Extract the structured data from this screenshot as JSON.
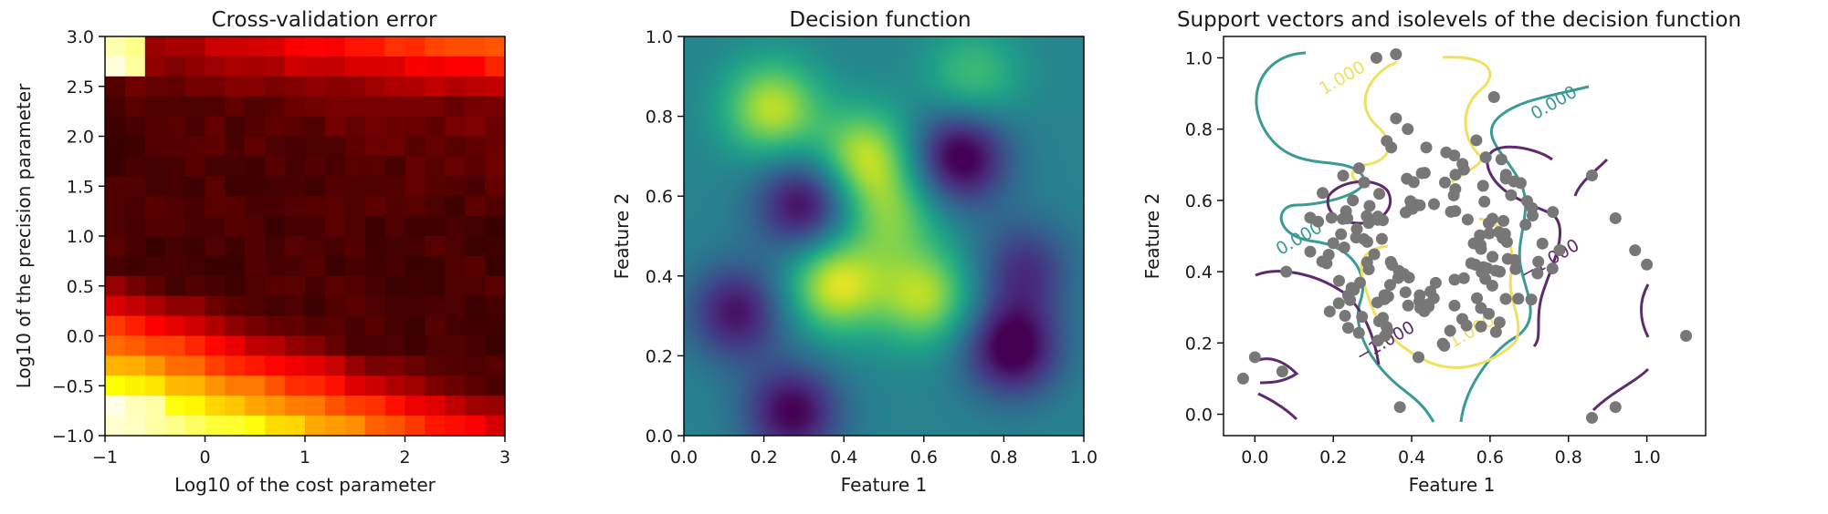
{
  "chart_data": [
    {
      "type": "heatmap",
      "title": "Cross-validation error",
      "xlabel": "Log10 of the cost parameter",
      "ylabel": "Log10 of the precision parameter",
      "xlim": [
        -1,
        3
      ],
      "ylim": [
        -1,
        3
      ],
      "xticks": [
        "-1",
        "0",
        "1",
        "2",
        "3"
      ],
      "yticks": [
        "-1.0",
        "-0.5",
        "0.0",
        "0.5",
        "1.0",
        "1.5",
        "2.0",
        "2.5",
        "3.0"
      ],
      "colormap": "hot",
      "grid": false
    },
    {
      "type": "heatmap",
      "title": "Decision function",
      "xlabel": "Feature 1",
      "ylabel": "Feature 2",
      "xlim": [
        0,
        1
      ],
      "ylim": [
        0,
        1
      ],
      "xticks": [
        "0.0",
        "0.2",
        "0.4",
        "0.6",
        "0.8",
        "1.0"
      ],
      "yticks": [
        "0.0",
        "0.2",
        "0.4",
        "0.6",
        "0.8",
        "1.0"
      ],
      "colormap": "viridis",
      "blobs": [
        {
          "x": 0.22,
          "y": 0.82,
          "w": 0.9
        },
        {
          "x": 0.45,
          "y": 0.7,
          "w": 0.9
        },
        {
          "x": 0.38,
          "y": 0.38,
          "w": 1.0
        },
        {
          "x": 0.6,
          "y": 0.35,
          "w": 0.85
        },
        {
          "x": 0.52,
          "y": 0.55,
          "w": 0.6
        },
        {
          "x": 0.72,
          "y": 0.9,
          "w": 0.5
        },
        {
          "x": 0.3,
          "y": 0.58,
          "w": -0.9
        },
        {
          "x": 0.69,
          "y": 0.7,
          "w": -1.0
        },
        {
          "x": 0.13,
          "y": 0.31,
          "w": -0.8
        },
        {
          "x": 0.27,
          "y": 0.06,
          "w": -0.9
        },
        {
          "x": 0.82,
          "y": 0.22,
          "w": -1.0
        },
        {
          "x": 0.85,
          "y": 0.42,
          "w": -0.6
        }
      ],
      "grid": false
    },
    {
      "type": "scatter",
      "title": "Support vectors and isolevels of the decision function",
      "xlabel": "Feature 1",
      "ylabel": "Feature 2",
      "xlim": [
        -0.08,
        1.15
      ],
      "ylim": [
        -0.06,
        1.06
      ],
      "xticks": [
        "0.0",
        "0.2",
        "0.4",
        "0.6",
        "0.8",
        "1.0"
      ],
      "yticks": [
        "0.0",
        "0.2",
        "0.4",
        "0.6",
        "0.8",
        "1.0"
      ],
      "points_color": "#777777",
      "contour_labels": [
        {
          "text": "1.000",
          "x": 0.23,
          "y": 0.93,
          "color": "#f0e060"
        },
        {
          "text": "0.000",
          "x": 0.77,
          "y": 0.86,
          "color": "#3a9a96"
        },
        {
          "text": "0.000",
          "x": 0.12,
          "y": 0.48,
          "color": "#3a9a96"
        },
        {
          "text": "1.000",
          "x": 0.56,
          "y": 0.22,
          "color": "#f0e060"
        },
        {
          "text": "-1.000",
          "x": 0.34,
          "y": 0.19,
          "color": "#5e2a6e"
        },
        {
          "text": "-1.000",
          "x": 0.76,
          "y": 0.42,
          "color": "#5e2a6e"
        }
      ],
      "grid": false
    }
  ]
}
